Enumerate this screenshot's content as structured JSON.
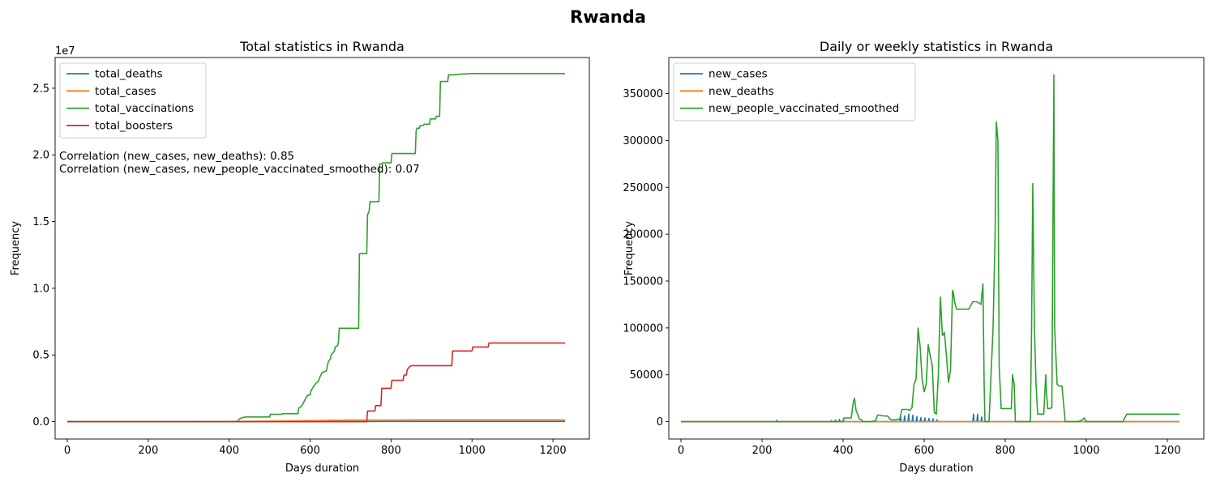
{
  "figure": {
    "suptitle": "Rwanda"
  },
  "colors": {
    "blue": "#1f77b4",
    "orange": "#ff7f0e",
    "green": "#2ca02c",
    "red": "#d62728"
  },
  "chart_data": [
    {
      "type": "line",
      "title": "Total statistics in Rwanda",
      "xlabel": "Days duration",
      "ylabel": "Frequency",
      "y_offset_label": "1e7",
      "xlim": [
        -30,
        1290
      ],
      "ylim": [
        -1300000,
        27300000
      ],
      "xticks": [
        0,
        200,
        400,
        600,
        800,
        1000,
        1200
      ],
      "yticks": [
        0,
        5000000,
        10000000,
        15000000,
        20000000,
        25000000
      ],
      "ytick_labels": [
        "0.0",
        "0.5",
        "1.0",
        "1.5",
        "2.0",
        "2.5"
      ],
      "legend_placement": "upper-left",
      "annotations": [
        "Correlation (new_cases, new_deaths): 0.85",
        "Correlation (new_cases, new_people_vaccinated_smoothed): 0.07"
      ],
      "series": [
        {
          "name": "total_deaths",
          "color": "blue",
          "x": [
            0,
            200,
            400,
            500,
            600,
            700,
            800,
            1230
          ],
          "y": [
            0,
            0,
            0,
            5000,
            10000,
            14000,
            15000,
            15000
          ]
        },
        {
          "name": "total_cases",
          "color": "orange",
          "x": [
            0,
            200,
            400,
            500,
            600,
            700,
            800,
            1000,
            1230
          ],
          "y": [
            0,
            2000,
            15000,
            40000,
            80000,
            120000,
            130000,
            133000,
            133000
          ]
        },
        {
          "name": "total_vaccinations",
          "color": "green",
          "x": [
            0,
            420,
            425,
            432,
            440,
            500,
            502,
            530,
            532,
            570,
            572,
            580,
            585,
            590,
            595,
            600,
            602,
            610,
            615,
            620,
            625,
            630,
            640,
            645,
            650,
            652,
            660,
            662,
            668,
            670,
            672,
            700,
            720,
            722,
            740,
            742,
            746,
            748,
            752,
            770,
            772,
            780,
            782,
            800,
            802,
            860,
            862,
            864,
            870,
            872,
            880,
            882,
            895,
            897,
            910,
            912,
            920,
            922,
            940,
            942,
            950,
            952,
            970,
            1000,
            1230
          ],
          "y": [
            0,
            0,
            200000,
            300000,
            350000,
            350000,
            550000,
            550000,
            600000,
            600000,
            1000000,
            1200000,
            1500000,
            1800000,
            2000000,
            2000000,
            2300000,
            2700000,
            2900000,
            3000000,
            3400000,
            3700000,
            3800000,
            4500000,
            4700000,
            5000000,
            5300000,
            5600000,
            5700000,
            6000000,
            7000000,
            7000000,
            7000000,
            12600000,
            12600000,
            15500000,
            15800000,
            16500000,
            16500000,
            16500000,
            19300000,
            19400000,
            19400000,
            19400000,
            20100000,
            20100000,
            21800000,
            22000000,
            22000000,
            22200000,
            22200000,
            22300000,
            22300000,
            22700000,
            22700000,
            22900000,
            22900000,
            25500000,
            25500000,
            26000000,
            26000000,
            26000000,
            26050000,
            26100000,
            26100000
          ]
        },
        {
          "name": "total_boosters",
          "color": "red",
          "x": [
            0,
            740,
            742,
            760,
            762,
            775,
            777,
            800,
            802,
            830,
            832,
            838,
            840,
            845,
            850,
            900,
            902,
            950,
            952,
            1000,
            1002,
            1040,
            1042,
            1230
          ],
          "y": [
            0,
            0,
            800000,
            800000,
            1200000,
            1200000,
            2500000,
            2500000,
            3100000,
            3100000,
            3500000,
            3500000,
            3900000,
            4100000,
            4200000,
            4200000,
            4200000,
            4200000,
            5300000,
            5300000,
            5600000,
            5600000,
            5900000,
            5900000
          ]
        }
      ]
    },
    {
      "type": "line",
      "title": "Daily or weekly statistics in Rwanda",
      "xlabel": "Days duration",
      "ylabel": "Frequency",
      "xlim": [
        -30,
        1290
      ],
      "ylim": [
        -18500,
        388500
      ],
      "xticks": [
        0,
        200,
        400,
        600,
        800,
        1000,
        1200
      ],
      "yticks": [
        0,
        50000,
        100000,
        150000,
        200000,
        250000,
        300000,
        350000
      ],
      "ytick_labels": [
        "0",
        "50000",
        "100000",
        "150000",
        "200000",
        "250000",
        "300000",
        "350000"
      ],
      "legend_placement": "upper-left",
      "series": [
        {
          "name": "new_cases",
          "color": "blue",
          "x": [
            0,
            200,
            235,
            236,
            237,
            300,
            360,
            370,
            371,
            372,
            380,
            381,
            382,
            390,
            391,
            392,
            400,
            401,
            402,
            540,
            542,
            543,
            545,
            550,
            552,
            553,
            555,
            560,
            562,
            563,
            565,
            570,
            572,
            573,
            575,
            580,
            582,
            583,
            585,
            590,
            592,
            593,
            595,
            600,
            602,
            603,
            605,
            610,
            612,
            613,
            615,
            620,
            622,
            623,
            625,
            630,
            632,
            633,
            635,
            640,
            700,
            720,
            722,
            723,
            725,
            730,
            732,
            733,
            735,
            740,
            742,
            743,
            745,
            750,
            760,
            1230
          ],
          "y": [
            0,
            0,
            0,
            1500,
            0,
            0,
            0,
            0,
            1200,
            0,
            0,
            1800,
            0,
            0,
            2400,
            0,
            0,
            3000,
            0,
            0,
            5000,
            0,
            0,
            0,
            6000,
            0,
            0,
            0,
            8000,
            0,
            0,
            0,
            7000,
            0,
            0,
            0,
            5500,
            0,
            0,
            0,
            4500,
            0,
            0,
            0,
            4000,
            0,
            0,
            0,
            3500,
            0,
            0,
            0,
            3000,
            0,
            0,
            0,
            2000,
            0,
            0,
            0,
            0,
            0,
            8000,
            0,
            0,
            0,
            8000,
            0,
            0,
            0,
            5000,
            0,
            0,
            0,
            0,
            0
          ]
        },
        {
          "name": "new_deaths",
          "color": "orange",
          "x": [
            0,
            1230
          ],
          "y": [
            0,
            0
          ]
        },
        {
          "name": "new_people_vaccinated_smoothed",
          "color": "green",
          "x": [
            0,
            400,
            402,
            420,
            425,
            428,
            432,
            436,
            440,
            445,
            450,
            460,
            470,
            480,
            485,
            490,
            500,
            510,
            515,
            520,
            530,
            540,
            545,
            550,
            555,
            560,
            565,
            570,
            575,
            580,
            585,
            590,
            595,
            600,
            605,
            610,
            615,
            620,
            625,
            630,
            635,
            640,
            645,
            650,
            655,
            660,
            665,
            670,
            672,
            675,
            680,
            685,
            690,
            700,
            710,
            720,
            730,
            740,
            745,
            748,
            750,
            755,
            758,
            760,
            770,
            775,
            778,
            782,
            785,
            790,
            800,
            810,
            815,
            818,
            822,
            825,
            840,
            855,
            862,
            865,
            868,
            872,
            876,
            880,
            890,
            895,
            900,
            902,
            905,
            910,
            915,
            920,
            922,
            928,
            932,
            940,
            948,
            955,
            960,
            980,
            990,
            995,
            1000,
            1090,
            1100,
            1230
          ],
          "y": [
            0,
            0,
            4000,
            4000,
            20000,
            25000,
            12000,
            8000,
            3000,
            2000,
            0,
            0,
            0,
            1000,
            7000,
            7000,
            6000,
            6000,
            3000,
            2000,
            2000,
            3000,
            13000,
            13000,
            13000,
            13000,
            12000,
            15000,
            40000,
            45000,
            100000,
            80000,
            45000,
            32000,
            40000,
            82000,
            70000,
            60000,
            10000,
            8000,
            50000,
            133000,
            92000,
            95000,
            70000,
            42000,
            55000,
            140000,
            138000,
            128000,
            120000,
            120000,
            120000,
            120000,
            120000,
            128000,
            128000,
            125000,
            147000,
            40000,
            0,
            0,
            0,
            0,
            100000,
            200000,
            320000,
            300000,
            60000,
            14000,
            14000,
            14000,
            14000,
            50000,
            40000,
            0,
            0,
            0,
            0,
            100000,
            254000,
            100000,
            40000,
            8000,
            8000,
            8000,
            50000,
            30000,
            14000,
            14000,
            15000,
            370000,
            100000,
            40000,
            38000,
            38000,
            0,
            0,
            0,
            0,
            2000,
            4000,
            0,
            0,
            8000,
            8000
          ]
        }
      ]
    }
  ]
}
